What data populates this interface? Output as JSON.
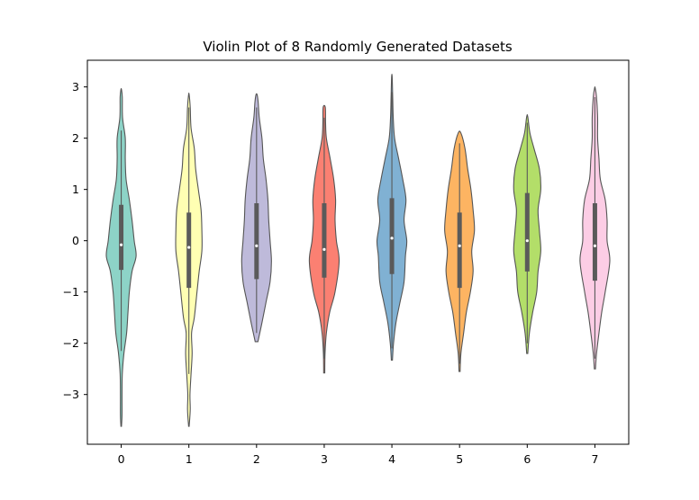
{
  "chart_data": {
    "type": "violin",
    "title": "Violin Plot of 8 Randomly Generated Datasets",
    "xlabel": "",
    "ylabel": "",
    "categories": [
      "0",
      "1",
      "2",
      "3",
      "4",
      "5",
      "6",
      "7"
    ],
    "ylim": [
      -3.97,
      3.52
    ],
    "yticks": [
      -3,
      -2,
      -1,
      0,
      1,
      2,
      3
    ],
    "ytick_labels": [
      "−3",
      "−2",
      "−1",
      "0",
      "1",
      "2",
      "3"
    ],
    "grid": false,
    "legend": "none",
    "colors": [
      "#8dd3c7",
      "#ffffb3",
      "#bebada",
      "#fb8072",
      "#80b1d3",
      "#fdb462",
      "#b3de69",
      "#fccde5"
    ],
    "violins": [
      {
        "category": "0",
        "min": -3.62,
        "max": 2.95,
        "q1": -0.57,
        "median": -0.08,
        "q3": 0.7,
        "whisker_low": -2.15,
        "whisker_high": 2.15,
        "profile": [
          [
            -3.62,
            0.01
          ],
          [
            -3.4,
            0.03
          ],
          [
            -3.0,
            0.03
          ],
          [
            -2.6,
            0.04
          ],
          [
            -2.2,
            0.1
          ],
          [
            -1.8,
            0.2
          ],
          [
            -1.4,
            0.25
          ],
          [
            -1.0,
            0.3
          ],
          [
            -0.6,
            0.4
          ],
          [
            -0.3,
            0.55
          ],
          [
            0.0,
            0.48
          ],
          [
            0.4,
            0.4
          ],
          [
            0.8,
            0.3
          ],
          [
            1.2,
            0.18
          ],
          [
            1.6,
            0.15
          ],
          [
            2.0,
            0.15
          ],
          [
            2.4,
            0.05
          ],
          [
            2.8,
            0.04
          ],
          [
            2.95,
            0.01
          ]
        ]
      },
      {
        "category": "1",
        "min": -3.62,
        "max": 2.85,
        "q1": -0.92,
        "median": -0.13,
        "q3": 0.55,
        "whisker_low": -2.6,
        "whisker_high": 2.6,
        "profile": [
          [
            -3.62,
            0.01
          ],
          [
            -3.3,
            0.05
          ],
          [
            -3.0,
            0.04
          ],
          [
            -2.6,
            0.08
          ],
          [
            -2.2,
            0.12
          ],
          [
            -1.8,
            0.1
          ],
          [
            -1.5,
            0.2
          ],
          [
            -1.0,
            0.3
          ],
          [
            -0.6,
            0.38
          ],
          [
            -0.2,
            0.48
          ],
          [
            0.2,
            0.48
          ],
          [
            0.6,
            0.45
          ],
          [
            1.0,
            0.35
          ],
          [
            1.4,
            0.25
          ],
          [
            1.8,
            0.2
          ],
          [
            2.2,
            0.08
          ],
          [
            2.6,
            0.05
          ],
          [
            2.85,
            0.01
          ]
        ]
      },
      {
        "category": "2",
        "min": -1.97,
        "max": 2.85,
        "q1": -0.75,
        "median": -0.1,
        "q3": 0.73,
        "whisker_low": -1.8,
        "whisker_high": 2.6,
        "profile": [
          [
            -1.97,
            0.05
          ],
          [
            -1.6,
            0.2
          ],
          [
            -1.2,
            0.35
          ],
          [
            -0.8,
            0.5
          ],
          [
            -0.4,
            0.55
          ],
          [
            0.0,
            0.5
          ],
          [
            0.4,
            0.45
          ],
          [
            0.8,
            0.42
          ],
          [
            1.2,
            0.35
          ],
          [
            1.6,
            0.25
          ],
          [
            2.0,
            0.2
          ],
          [
            2.4,
            0.1
          ],
          [
            2.7,
            0.06
          ],
          [
            2.85,
            0.02
          ]
        ]
      },
      {
        "category": "3",
        "min": -2.58,
        "max": 2.6,
        "q1": -0.72,
        "median": -0.17,
        "q3": 0.73,
        "whisker_low": -2.3,
        "whisker_high": 2.4,
        "profile": [
          [
            -2.58,
            0.02
          ],
          [
            -2.2,
            0.03
          ],
          [
            -1.8,
            0.08
          ],
          [
            -1.4,
            0.2
          ],
          [
            -1.0,
            0.4
          ],
          [
            -0.4,
            0.55
          ],
          [
            0.0,
            0.45
          ],
          [
            0.4,
            0.4
          ],
          [
            0.8,
            0.42
          ],
          [
            1.2,
            0.35
          ],
          [
            1.6,
            0.22
          ],
          [
            2.0,
            0.08
          ],
          [
            2.3,
            0.05
          ],
          [
            2.6,
            0.04
          ]
        ]
      },
      {
        "category": "4",
        "min": -2.33,
        "max": 3.2,
        "q1": -0.65,
        "median": 0.05,
        "q3": 0.83,
        "whisker_low": -2.1,
        "whisker_high": 2.9,
        "profile": [
          [
            -2.33,
            0.02
          ],
          [
            -2.0,
            0.06
          ],
          [
            -1.6,
            0.15
          ],
          [
            -1.2,
            0.3
          ],
          [
            -0.8,
            0.45
          ],
          [
            -0.3,
            0.5
          ],
          [
            0.0,
            0.55
          ],
          [
            0.4,
            0.45
          ],
          [
            0.8,
            0.52
          ],
          [
            1.2,
            0.4
          ],
          [
            1.6,
            0.25
          ],
          [
            2.0,
            0.1
          ],
          [
            2.4,
            0.05
          ],
          [
            2.8,
            0.03
          ],
          [
            3.2,
            0.01
          ]
        ]
      },
      {
        "category": "5",
        "min": -2.55,
        "max": 2.1,
        "q1": -0.92,
        "median": -0.1,
        "q3": 0.55,
        "whisker_low": -2.4,
        "whisker_high": 1.9,
        "profile": [
          [
            -2.55,
            0.02
          ],
          [
            -2.2,
            0.05
          ],
          [
            -1.8,
            0.15
          ],
          [
            -1.4,
            0.25
          ],
          [
            -1.0,
            0.4
          ],
          [
            -0.6,
            0.5
          ],
          [
            -0.2,
            0.45
          ],
          [
            0.2,
            0.55
          ],
          [
            0.6,
            0.5
          ],
          [
            1.0,
            0.42
          ],
          [
            1.4,
            0.3
          ],
          [
            1.8,
            0.2
          ],
          [
            2.1,
            0.05
          ]
        ]
      },
      {
        "category": "6",
        "min": -2.2,
        "max": 2.42,
        "q1": -0.6,
        "median": 0.0,
        "q3": 0.93,
        "whisker_low": -2.0,
        "whisker_high": 2.3,
        "profile": [
          [
            -2.2,
            0.02
          ],
          [
            -1.8,
            0.08
          ],
          [
            -1.4,
            0.2
          ],
          [
            -1.0,
            0.35
          ],
          [
            -0.6,
            0.4
          ],
          [
            -0.2,
            0.5
          ],
          [
            0.2,
            0.45
          ],
          [
            0.6,
            0.4
          ],
          [
            1.0,
            0.5
          ],
          [
            1.4,
            0.45
          ],
          [
            1.8,
            0.25
          ],
          [
            2.1,
            0.1
          ],
          [
            2.42,
            0.02
          ]
        ]
      },
      {
        "category": "7",
        "min": -2.5,
        "max": 2.98,
        "q1": -0.78,
        "median": -0.1,
        "q3": 0.73,
        "whisker_low": -2.3,
        "whisker_high": 2.8,
        "profile": [
          [
            -2.5,
            0.02
          ],
          [
            -2.2,
            0.06
          ],
          [
            -1.8,
            0.15
          ],
          [
            -1.4,
            0.25
          ],
          [
            -1.0,
            0.38
          ],
          [
            -0.4,
            0.55
          ],
          [
            0.0,
            0.45
          ],
          [
            0.4,
            0.45
          ],
          [
            0.8,
            0.38
          ],
          [
            1.2,
            0.2
          ],
          [
            1.6,
            0.15
          ],
          [
            2.0,
            0.1
          ],
          [
            2.4,
            0.1
          ],
          [
            2.8,
            0.06
          ],
          [
            2.98,
            0.01
          ]
        ]
      }
    ]
  }
}
